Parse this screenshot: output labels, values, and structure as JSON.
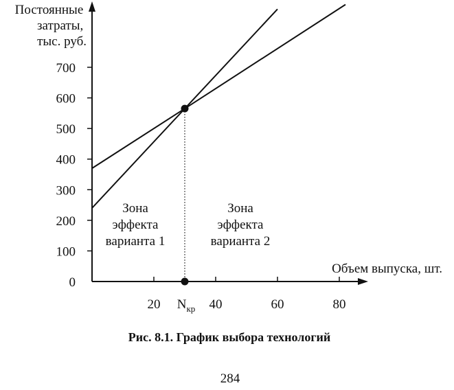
{
  "chart_data": {
    "type": "line",
    "ylabel": [
      "Постоянные",
      "затраты,",
      "тыс. руб."
    ],
    "xlabel": "Объем выпуска, шт.",
    "xlim": [
      0,
      80
    ],
    "ylim": [
      0,
      700
    ],
    "x_ticks": [
      "20",
      "40",
      "60",
      "80"
    ],
    "x_tick_values": [
      20,
      40,
      60,
      80
    ],
    "y_ticks": [
      "700",
      "600",
      "500",
      "400",
      "300",
      "200",
      "100",
      "0"
    ],
    "y_tick_values": [
      700,
      600,
      500,
      400,
      300,
      200,
      100,
      0
    ],
    "critical_point": {
      "label_main": "N",
      "label_sub": "кр",
      "x": 30,
      "y": 565
    },
    "series": [
      {
        "x": [
          0,
          30,
          82
        ],
        "y": [
          370,
          565,
          905
        ]
      },
      {
        "x": [
          0,
          30,
          60
        ],
        "y": [
          240,
          565,
          890
        ]
      }
    ],
    "zones": [
      {
        "lines": [
          "Зона",
          "эффекта",
          "варианта 1"
        ],
        "x": 14
      },
      {
        "lines": [
          "Зона",
          "эффекта",
          "варианта 2"
        ],
        "x": 48
      }
    ]
  },
  "caption": {
    "prefix": "Рис. 8.1.",
    "text": "График выбора технологий"
  },
  "page_number": "284"
}
